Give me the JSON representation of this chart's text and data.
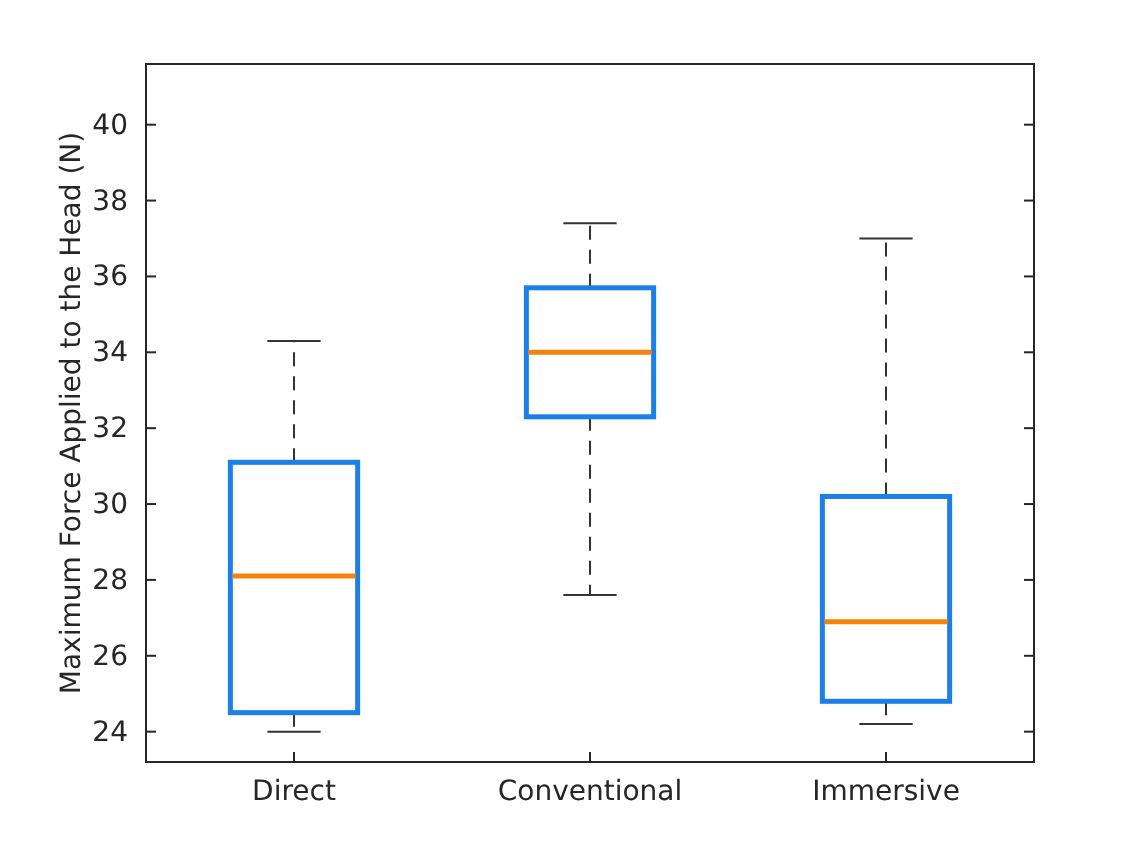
{
  "chart_data": {
    "type": "box",
    "ylabel": "Maximum Force Applied to the Head (N)",
    "categories": [
      "Direct",
      "Conventional",
      "Immersive"
    ],
    "ylim": [
      23.2,
      41.6
    ],
    "yticks": [
      24,
      26,
      28,
      30,
      32,
      34,
      36,
      38,
      40
    ],
    "grid": false,
    "series": [
      {
        "color": "#1a7fe6",
        "boxes": [
          {
            "low": 24.0,
            "q1": 24.5,
            "median": 28.1,
            "q3": 31.1,
            "high": 34.3
          },
          {
            "low": 27.6,
            "q1": 32.3,
            "median": 34.0,
            "q3": 35.7,
            "high": 37.4
          },
          {
            "low": 24.2,
            "q1": 24.8,
            "median": 26.9,
            "q3": 30.2,
            "high": 37.0
          }
        ]
      }
    ]
  }
}
